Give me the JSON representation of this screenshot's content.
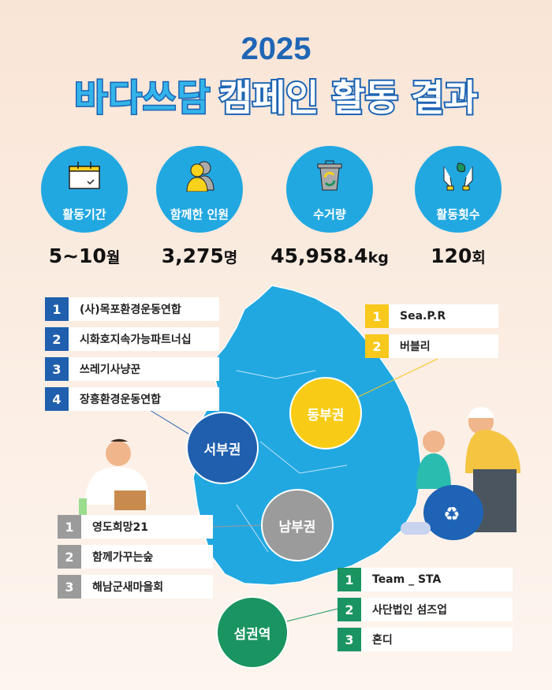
{
  "header": {
    "year": "2025",
    "brand": "바다쓰담",
    "title": "캠페인 활동 결과"
  },
  "stats": [
    {
      "icon": "calendar-icon",
      "label": "활동기간",
      "value": "5~10",
      "unit": "월"
    },
    {
      "icon": "people-icon",
      "label": "함께한 인원",
      "value": "3,275",
      "unit": "명"
    },
    {
      "icon": "recycle-bin-icon",
      "label": "수거량",
      "value": "45,958.4",
      "unit": "kg"
    },
    {
      "icon": "hands-leaf-icon",
      "label": "활동횟수",
      "value": "120",
      "unit": "회"
    }
  ],
  "colors": {
    "blue": "#22a8e1",
    "west": "#1f5fae",
    "east": "#f8c81c",
    "south": "#9b9b9b",
    "island": "#1a9460"
  },
  "regions": {
    "west": {
      "name": "서부권",
      "items": [
        {
          "n": "1",
          "name": "(사)목포환경운동연합"
        },
        {
          "n": "2",
          "name": "시화호지속가능파트너십"
        },
        {
          "n": "3",
          "name": "쓰레기사냥꾼"
        },
        {
          "n": "4",
          "name": "장흥환경운동연합"
        }
      ]
    },
    "east": {
      "name": "동부권",
      "items": [
        {
          "n": "1",
          "name": "Sea.P.R"
        },
        {
          "n": "2",
          "name": "버블리"
        }
      ]
    },
    "south": {
      "name": "남부권",
      "items": [
        {
          "n": "1",
          "name": "영도희망21"
        },
        {
          "n": "2",
          "name": "함께가꾸는숲"
        },
        {
          "n": "3",
          "name": "해남군새마을회"
        }
      ]
    },
    "island": {
      "name": "섬권역",
      "items": [
        {
          "n": "1",
          "name": "Team _ STA"
        },
        {
          "n": "2",
          "name": "사단법인 섬즈업"
        },
        {
          "n": "3",
          "name": "혼디"
        }
      ]
    }
  }
}
